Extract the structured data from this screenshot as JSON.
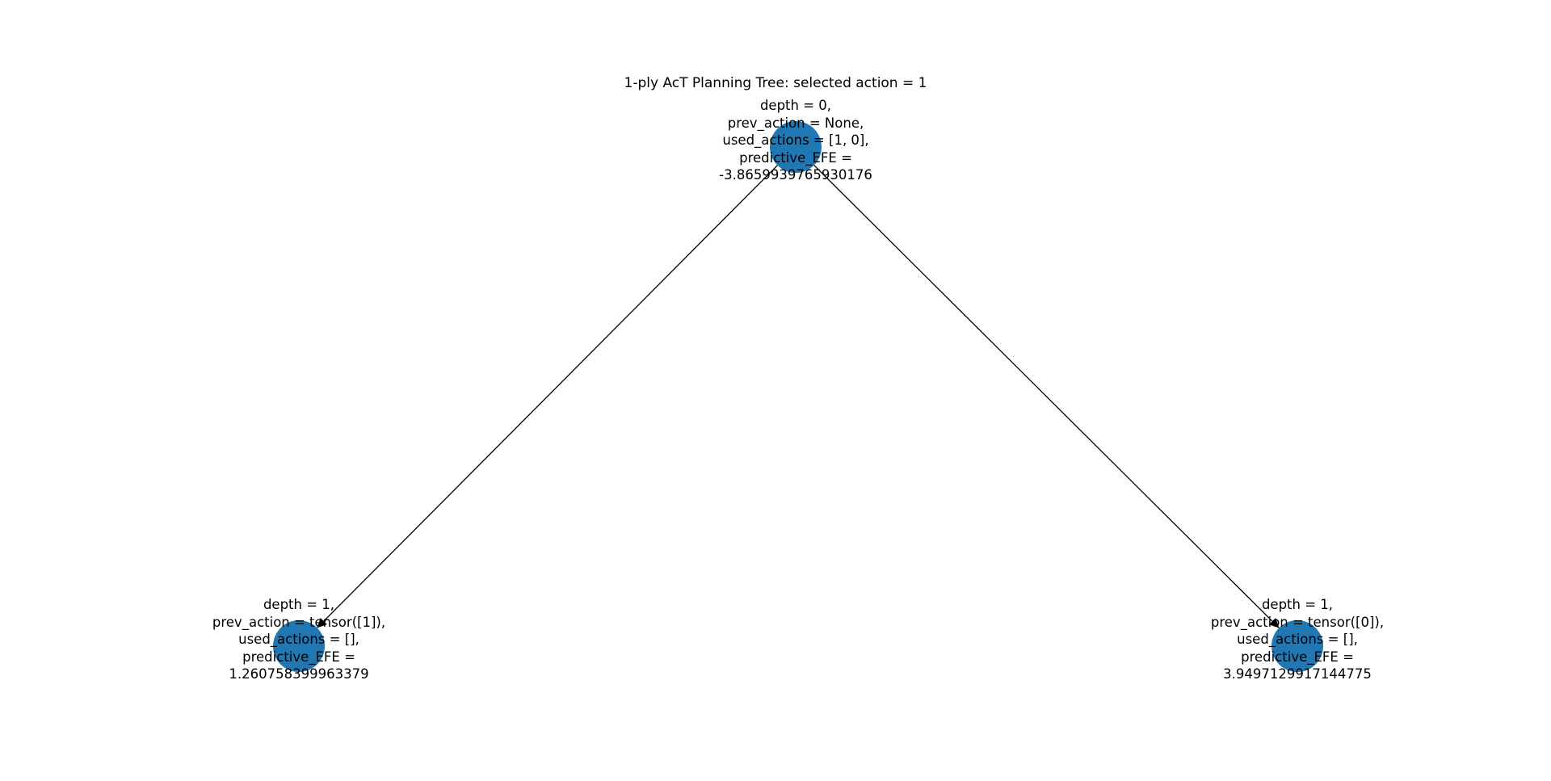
{
  "title": "1-ply AcT Planning Tree: selected action = 1",
  "node_color": "#1f77b4",
  "edge_color": "#000000",
  "nodes": [
    {
      "id": "root",
      "lines": [
        "depth = 0,",
        "prev_action = None,",
        "used_actions = [1, 0],",
        "predictive_EFE =",
        "-3.8659939765930176"
      ]
    },
    {
      "id": "child-1",
      "lines": [
        "depth = 1,",
        "prev_action = tensor([1]),",
        "used_actions = [],",
        "predictive_EFE =",
        "1.260758399963379"
      ]
    },
    {
      "id": "child-0",
      "lines": [
        "depth = 1,",
        "prev_action = tensor([0]),",
        "used_actions = [],",
        "predictive_EFE =",
        "3.9497129917144775"
      ]
    }
  ],
  "edges": [
    {
      "from": "root",
      "to": "child-1"
    },
    {
      "from": "root",
      "to": "child-0"
    }
  ]
}
